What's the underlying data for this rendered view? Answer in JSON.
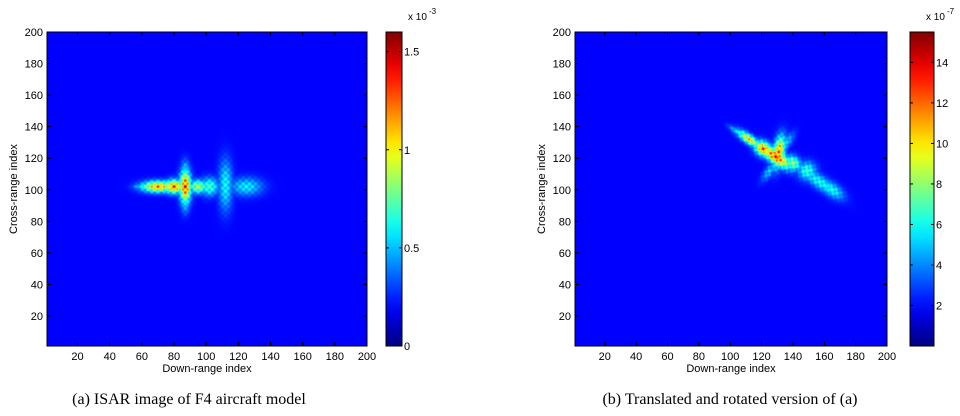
{
  "chart_data": [
    {
      "type": "heatmap",
      "title": "",
      "caption": "(a) ISAR image of F4 aircraft model",
      "xlabel": "Down-range index",
      "ylabel": "Cross-range index",
      "xlim": [
        1,
        200
      ],
      "ylim": [
        1,
        200
      ],
      "xticks": [
        20,
        40,
        60,
        80,
        100,
        120,
        140,
        160,
        180,
        200
      ],
      "yticks": [
        20,
        40,
        60,
        80,
        100,
        120,
        140,
        160,
        180,
        200
      ],
      "colorbar": {
        "min": 0,
        "max": 0.0016,
        "ticks": [
          0,
          0.5,
          1,
          1.5
        ],
        "multiplier_base": "x 10",
        "multiplier_exp": "-3"
      },
      "colormap": "jet",
      "background_color": "#00008F",
      "hotspots": [
        {
          "x": 70,
          "y": 102,
          "sx": 7,
          "sy": 2.5,
          "angle": 0,
          "value": 1.4
        },
        {
          "x": 80,
          "y": 102,
          "sx": 4,
          "sy": 3,
          "angle": 0,
          "value": 1.5
        },
        {
          "x": 87,
          "y": 102,
          "sx": 2.5,
          "sy": 7,
          "angle": 0,
          "value": 1.6
        },
        {
          "x": 95,
          "y": 102,
          "sx": 4,
          "sy": 3,
          "angle": 0,
          "value": 1.0
        },
        {
          "x": 102,
          "y": 102,
          "sx": 4,
          "sy": 4,
          "angle": 0,
          "value": 0.75
        },
        {
          "x": 112,
          "y": 103,
          "sx": 3,
          "sy": 11,
          "angle": 0,
          "value": 0.6
        },
        {
          "x": 125,
          "y": 102,
          "sx": 7,
          "sy": 4,
          "angle": 0,
          "value": 0.55
        },
        {
          "x": 60,
          "y": 102,
          "sx": 4,
          "sy": 1.2,
          "angle": 0,
          "value": 0.55
        },
        {
          "x": 87,
          "y": 112,
          "sx": 2,
          "sy": 5,
          "angle": 0,
          "value": 0.5
        },
        {
          "x": 87,
          "y": 92,
          "sx": 2,
          "sy": 5,
          "angle": 0,
          "value": 0.5
        }
      ]
    },
    {
      "type": "heatmap",
      "title": "",
      "caption": "(b) Translated and rotated version of (a)",
      "xlabel": "Down-range index",
      "ylabel": "Cross-range index",
      "xlim": [
        1,
        200
      ],
      "ylim": [
        1,
        200
      ],
      "xticks": [
        20,
        40,
        60,
        80,
        100,
        120,
        140,
        160,
        180,
        200
      ],
      "yticks": [
        20,
        40,
        60,
        80,
        100,
        120,
        140,
        160,
        180,
        200
      ],
      "colorbar": {
        "min": 0,
        "max": 15.5,
        "ticks": [
          2,
          4,
          6,
          8,
          10,
          12,
          14
        ],
        "multiplier_base": "x 10",
        "multiplier_exp": "-7"
      },
      "colormap": "jet",
      "background_color": "#00008F",
      "hotspots": [
        {
          "x": 112,
          "y": 132,
          "sx": 6,
          "sy": 2,
          "angle": -35,
          "value": 12
        },
        {
          "x": 121,
          "y": 126,
          "sx": 4,
          "sy": 3,
          "angle": -35,
          "value": 14.5
        },
        {
          "x": 129,
          "y": 121,
          "sx": 3,
          "sy": 8,
          "angle": 55,
          "value": 15
        },
        {
          "x": 131,
          "y": 124,
          "sx": 2.5,
          "sy": 7,
          "angle": -10,
          "value": 14
        },
        {
          "x": 140,
          "y": 117,
          "sx": 4,
          "sy": 3,
          "angle": -35,
          "value": 9
        },
        {
          "x": 149,
          "y": 112,
          "sx": 4,
          "sy": 4,
          "angle": -35,
          "value": 7
        },
        {
          "x": 157,
          "y": 105,
          "sx": 3,
          "sy": 10,
          "angle": 55,
          "value": 6
        },
        {
          "x": 165,
          "y": 100,
          "sx": 6,
          "sy": 3,
          "angle": -35,
          "value": 6
        },
        {
          "x": 104,
          "y": 137,
          "sx": 4,
          "sy": 1.2,
          "angle": -35,
          "value": 5
        },
        {
          "x": 136,
          "y": 130,
          "sx": 2,
          "sy": 5,
          "angle": -35,
          "value": 4.5
        },
        {
          "x": 125,
          "y": 112,
          "sx": 2,
          "sy": 5,
          "angle": -35,
          "value": 4.5
        }
      ]
    }
  ]
}
